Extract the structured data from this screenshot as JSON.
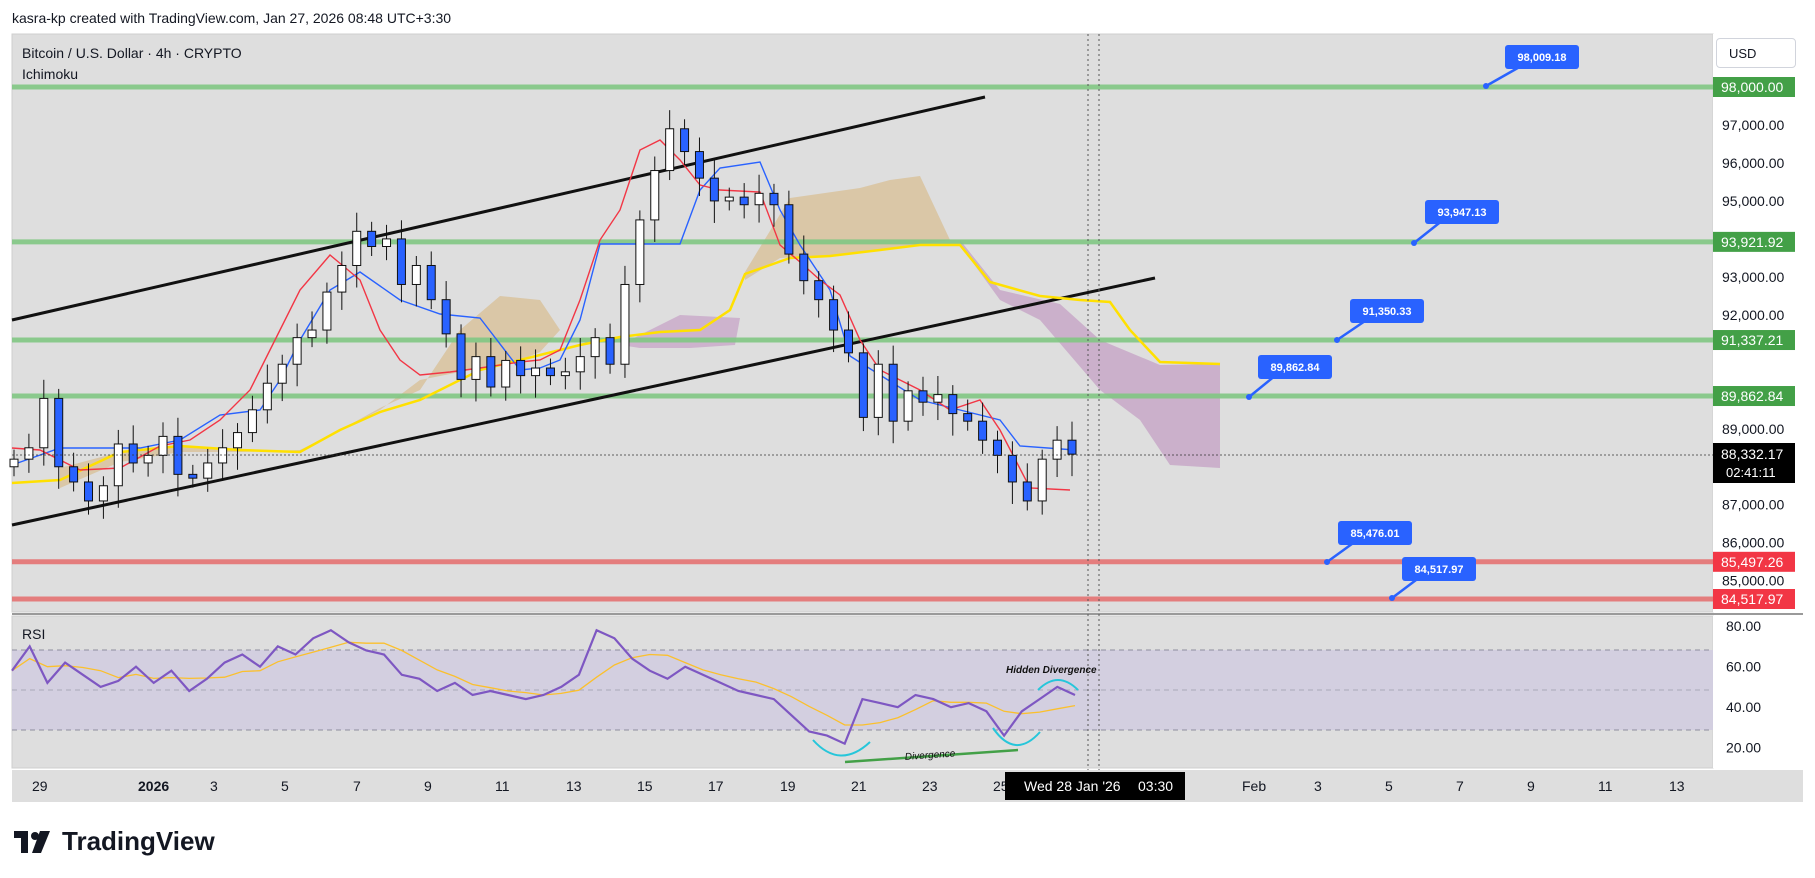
{
  "header": {
    "attribution": "kasra-kp created with TradingView.com, Jan 27, 2026 08:48 UTC+3:30"
  },
  "legend": {
    "symbol": "Bitcoin / U.S. Dollar · 4h · CRYPTO",
    "indicator": "Ichimoku",
    "rsi_label": "RSI"
  },
  "currency_button": "USD",
  "footer": {
    "brand": "TradingView"
  },
  "colors": {
    "up_candle": "#ffffff",
    "down_candle": "#2962ff",
    "support_line": "#81c784",
    "resistance_line": "#e57373",
    "rsi_line": "#7e57c2",
    "rsi_ma": "#fbc02d",
    "tenkan": "#f23645",
    "kijun": "#2962ff",
    "senkou_a_fill": "#d1b27a",
    "senkou_b_fill": "#c8a2c8",
    "callout": "#2962ff"
  },
  "chart_data": {
    "type": "candlestick",
    "price_axis": {
      "ticks": [
        "97,000.00",
        "96,000.00",
        "95,000.00",
        "93,000.00",
        "92,000.00",
        "89,000.00",
        "87,000.00",
        "86,000.00",
        "85,000.00"
      ],
      "ylim": [
        84000,
        98600
      ]
    },
    "time_axis": {
      "ticks": [
        "29",
        "2026",
        "3",
        "5",
        "7",
        "9",
        "11",
        "13",
        "15",
        "17",
        "19",
        "21",
        "23",
        "25",
        "Feb",
        "3",
        "5",
        "7",
        "9",
        "11",
        "13"
      ]
    },
    "crosshair_label": {
      "date": "Wed 28 Jan '26",
      "time": "03:30"
    },
    "last_price": {
      "value": "88,332.17",
      "countdown": "02:41:11"
    },
    "horizontal_levels": [
      {
        "price": 98000,
        "label": "98,000.00",
        "kind": "support"
      },
      {
        "price": 93921.92,
        "label": "93,921.92",
        "kind": "support"
      },
      {
        "price": 91337.21,
        "label": "91,337.21",
        "kind": "support"
      },
      {
        "price": 89862.84,
        "label": "89,862.84",
        "kind": "support"
      },
      {
        "price": 85497.26,
        "label": "85,497.26",
        "kind": "resistance"
      },
      {
        "price": 84517.97,
        "label": "84,517.97",
        "kind": "resistance"
      }
    ],
    "callouts": [
      "98,009.18",
      "93,947.13",
      "91,350.33",
      "89,862.84",
      "85,476.01",
      "84,517.97"
    ],
    "candles_close": [
      88200,
      88500,
      89800,
      88000,
      87600,
      87100,
      87500,
      88600,
      88100,
      88300,
      88800,
      87800,
      87700,
      88100,
      88500,
      88900,
      89500,
      90200,
      90700,
      91400,
      91600,
      92600,
      93300,
      94200,
      93800,
      94000,
      92800,
      93300,
      92400,
      91500,
      90300,
      90900,
      90100,
      90800,
      90400,
      90600,
      90400,
      90500,
      90900,
      91400,
      90700,
      92800,
      94500,
      95800,
      96900,
      96300,
      95600,
      95000,
      95100,
      94900,
      95200,
      94900,
      93600,
      92900,
      92400,
      91600,
      91000,
      89300,
      90700,
      89200,
      90000,
      89700,
      89900,
      89400,
      89200,
      88700,
      88300,
      87600,
      87100,
      88200,
      88700,
      88332
    ],
    "rsi": {
      "axis_ticks": [
        "80.00",
        "60.00",
        "40.00",
        "20.00"
      ],
      "upper": 70,
      "lower": 30,
      "values": [
        58,
        70,
        52,
        62,
        56,
        50,
        53,
        60,
        52,
        58,
        48,
        54,
        62,
        66,
        60,
        70,
        66,
        74,
        78,
        72,
        68,
        66,
        56,
        54,
        48,
        52,
        46,
        48,
        46,
        44,
        46,
        50,
        56,
        78,
        74,
        64,
        58,
        54,
        60,
        56,
        52,
        48,
        46,
        44,
        36,
        28,
        26,
        22,
        44,
        42,
        40,
        46,
        44,
        40,
        42,
        38,
        26,
        38,
        44,
        50,
        46
      ],
      "annotations": [
        "Hidden Divergence",
        "Divergence"
      ]
    }
  }
}
